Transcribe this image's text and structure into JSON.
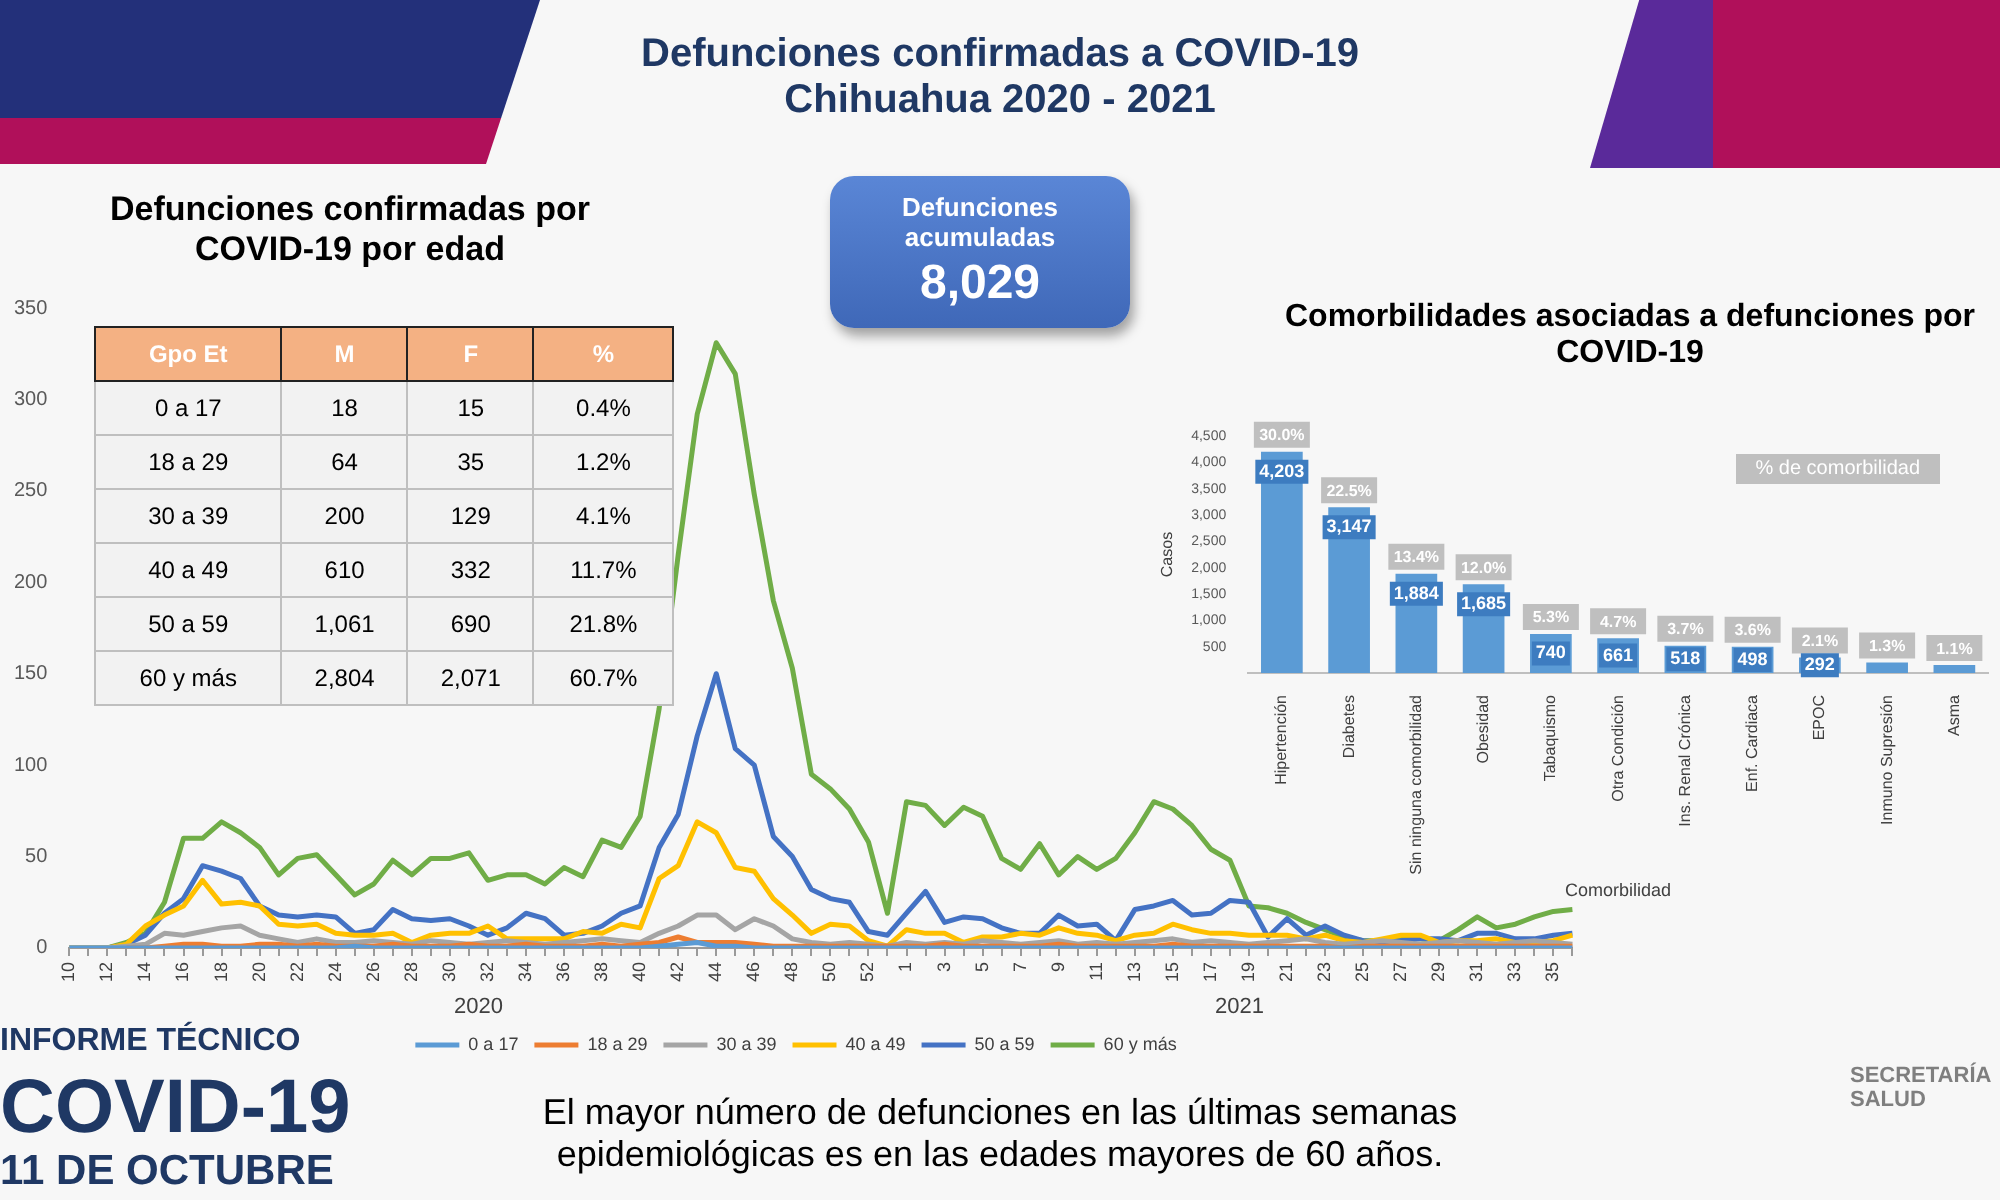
{
  "chart_data": [
    {
      "type": "other",
      "title": "Defunciones confirmadas a COVID-19",
      "subtitle": "Chihuahua 2020 - 2021",
      "annotations": [
        "INFORME TÉCNICO",
        "COVID-19",
        "11 DE OCTUBRE",
        "El mayor número de defunciones en las últimas semanas epidemiológicas es en las edades mayores de 60 años.",
        "SECRETARÍA SALUD"
      ]
    },
    {
      "type": "line",
      "title": "Defunciones confirmadas por COVID-19 por edad",
      "categories": [
        "10",
        null,
        "12",
        null,
        "14",
        null,
        "16",
        null,
        "18",
        null,
        "20",
        null,
        "22",
        null,
        "24",
        null,
        "26",
        null,
        "28",
        null,
        "30",
        null,
        "32",
        null,
        "34",
        null,
        "36",
        null,
        "38",
        null,
        "40",
        null,
        "42",
        null,
        "44",
        null,
        "46",
        null,
        "48",
        null,
        "50",
        null,
        "52",
        null,
        "1",
        null,
        "3",
        null,
        "5",
        null,
        "7",
        null,
        "9",
        null,
        "11",
        null,
        "13",
        null,
        "15",
        null,
        "17",
        null,
        "19",
        null,
        "21",
        null,
        "23",
        null,
        "25",
        null,
        "27",
        null,
        "29",
        null,
        "31",
        null,
        "33",
        null,
        "35",
        null
      ],
      "series": [
        {
          "name": "0 a 17",
          "color": "#5b9bd5",
          "values": [
            0,
            0,
            0,
            0,
            0,
            0,
            0,
            0,
            0,
            0,
            0,
            0,
            0,
            0,
            0,
            1,
            0,
            0,
            0,
            0,
            0,
            0,
            0,
            0,
            0,
            0,
            0,
            0,
            0,
            0,
            0,
            1,
            2,
            3,
            1,
            1,
            0,
            0,
            0,
            0,
            0,
            0,
            0,
            0,
            0,
            0,
            0,
            0,
            0,
            0,
            0,
            0,
            0,
            0,
            0,
            0,
            0,
            0,
            0,
            0,
            0,
            0,
            0,
            0,
            0,
            0,
            0,
            0,
            0,
            0,
            0,
            0,
            0,
            0,
            0,
            0,
            0,
            0,
            0,
            0
          ]
        },
        {
          "name": "18 a 29",
          "color": "#ed7d31",
          "values": [
            null,
            null,
            null,
            0,
            0,
            1,
            2,
            2,
            1,
            1,
            2,
            2,
            1,
            2,
            1,
            1,
            1,
            2,
            1,
            1,
            1,
            2,
            1,
            1,
            2,
            1,
            1,
            1,
            2,
            1,
            2,
            3,
            6,
            3,
            3,
            3,
            2,
            1,
            1,
            1,
            1,
            1,
            1,
            1,
            1,
            1,
            2,
            1,
            1,
            1,
            1,
            1,
            2,
            1,
            1,
            1,
            1,
            1,
            2,
            1,
            1,
            1,
            1,
            1,
            1,
            1,
            1,
            0,
            1,
            1,
            1,
            1,
            1,
            1,
            1,
            1,
            1,
            1,
            1,
            1
          ]
        },
        {
          "name": "30 a 39",
          "color": "#a5a5a5",
          "values": [
            0,
            0,
            0,
            1,
            2,
            8,
            7,
            9,
            11,
            12,
            7,
            5,
            3,
            5,
            3,
            3,
            4,
            3,
            2,
            4,
            3,
            2,
            3,
            4,
            3,
            2,
            3,
            4,
            5,
            4,
            3,
            8,
            12,
            18,
            18,
            10,
            16,
            12,
            5,
            3,
            2,
            3,
            2,
            1,
            3,
            2,
            3,
            2,
            4,
            3,
            2,
            3,
            4,
            2,
            3,
            2,
            3,
            4,
            5,
            3,
            4,
            3,
            2,
            3,
            4,
            5,
            3,
            2,
            3,
            4,
            3,
            2,
            3,
            4,
            3,
            2,
            3,
            4,
            3,
            2
          ]
        },
        {
          "name": "40 a 49",
          "color": "#ffc000",
          "values": [
            0,
            0,
            0,
            2,
            12,
            18,
            23,
            37,
            24,
            25,
            23,
            13,
            12,
            13,
            8,
            7,
            7,
            8,
            3,
            7,
            8,
            8,
            12,
            5,
            5,
            5,
            5,
            9,
            8,
            13,
            11,
            38,
            45,
            69,
            63,
            44,
            42,
            27,
            18,
            8,
            13,
            12,
            4,
            1,
            10,
            8,
            8,
            3,
            6,
            6,
            8,
            7,
            11,
            8,
            7,
            4,
            7,
            8,
            13,
            10,
            8,
            8,
            7,
            7,
            7,
            5,
            7,
            4,
            3,
            5,
            7,
            7,
            3,
            4,
            4,
            5,
            3,
            3,
            4,
            7
          ]
        },
        {
          "name": "50 a 59",
          "color": "#4472c4",
          "values": [
            0,
            0,
            0,
            2,
            7,
            19,
            27,
            45,
            42,
            38,
            23,
            18,
            17,
            18,
            17,
            8,
            10,
            21,
            16,
            15,
            16,
            12,
            7,
            11,
            19,
            16,
            7,
            8,
            12,
            19,
            23,
            55,
            73,
            116,
            150,
            109,
            100,
            61,
            50,
            32,
            27,
            25,
            9,
            7,
            19,
            31,
            14,
            17,
            16,
            11,
            8,
            8,
            18,
            12,
            13,
            4,
            21,
            23,
            26,
            18,
            19,
            26,
            25,
            6,
            16,
            7,
            12,
            7,
            4,
            3,
            4,
            5,
            5,
            4,
            8,
            8,
            5,
            5,
            7,
            8
          ]
        },
        {
          "name": "60 y más",
          "color": "#70ad47",
          "values": [
            0,
            0,
            0,
            3,
            8,
            25,
            60,
            60,
            69,
            63,
            55,
            40,
            49,
            51,
            40,
            29,
            35,
            48,
            40,
            49,
            49,
            52,
            37,
            40,
            40,
            35,
            44,
            39,
            59,
            55,
            72,
            131,
            215,
            292,
            331,
            314,
            248,
            190,
            153,
            95,
            87,
            76,
            58,
            19,
            80,
            78,
            67,
            77,
            72,
            49,
            43,
            57,
            40,
            50,
            43,
            49,
            63,
            80,
            76,
            67,
            54,
            48,
            23,
            22,
            19,
            14,
            10,
            6,
            4,
            4,
            6,
            5,
            4,
            10,
            17,
            11,
            13,
            17,
            20,
            21
          ]
        }
      ],
      "ylim": [
        0,
        350
      ],
      "yticks": [
        0,
        50,
        100,
        150,
        200,
        250,
        300,
        350
      ],
      "grid": false,
      "legend": "bottom",
      "annotations": [
        "2020",
        "2021"
      ]
    },
    {
      "type": "other",
      "ylabel": "Gpo Et",
      "categories": [
        "M",
        "F",
        "%"
      ],
      "y_categories": [
        "0 a 17",
        "18 a 29",
        "30 a 39",
        "40 a 49",
        "50 a 59",
        "60 y más"
      ],
      "cell_labels": [
        [
          "18",
          "15",
          "0.4%"
        ],
        [
          "64",
          "35",
          "1.2%"
        ],
        [
          "200",
          "129",
          "4.1%"
        ],
        [
          "610",
          "332",
          "11.7%"
        ],
        [
          "1,061",
          "690",
          "21.8%"
        ],
        [
          "2,804",
          "2,071",
          "60.7%"
        ]
      ]
    },
    {
      "type": "other",
      "title": "Defunciones acumuladas",
      "annotations": [
        "8,029"
      ]
    },
    {
      "type": "bar",
      "title": "Comorbilidades asociadas a defunciones por COVID-19",
      "xlabel": "Comorbilidad",
      "ylabel": "Casos",
      "categories": [
        "Hipertención",
        "Diabetes",
        "Sin ninguna comorbilidad",
        "Obesidad",
        "Tabaquismo",
        "Otra Condición",
        "Ins. Renal Crónica",
        "Enf. Cardiaca",
        "EPOC",
        "Inmuno Supresión",
        "Asma"
      ],
      "values": [
        4203,
        3147,
        1884,
        1685,
        740,
        661,
        518,
        498,
        292,
        200,
        150
      ],
      "color": "#5b9bd5",
      "value_labels": [
        "4,203",
        "3,147",
        "1,884",
        "1,685",
        "740",
        "661",
        "518",
        "498",
        "292",
        null,
        null
      ],
      "ylim": [
        0,
        4500
      ],
      "yticks": [
        {
          "value": 500,
          "label": "500"
        },
        {
          "value": 1000,
          "label": "1,000"
        },
        {
          "value": 1500,
          "label": "1,500"
        },
        {
          "value": 2000,
          "label": "2,000"
        },
        {
          "value": 2500,
          "label": "2,500"
        },
        {
          "value": 3000,
          "label": "3,000"
        },
        {
          "value": 3500,
          "label": "3,500"
        },
        {
          "value": 4000,
          "label": "4,000"
        },
        {
          "value": 4500,
          "label": "4,500"
        }
      ],
      "grid": false,
      "annotations": [
        "% de comorbilidad",
        {
          "text": "30.0%",
          "x": "Hipertención",
          "y": 4203
        },
        {
          "text": "22.5%",
          "x": "Diabetes",
          "y": 3147
        },
        {
          "text": "13.4%",
          "x": "Sin ninguna comorbilidad",
          "y": 1884
        },
        {
          "text": "12.0%",
          "x": "Obesidad",
          "y": 1685
        },
        {
          "text": "5.3%",
          "x": "Tabaquismo",
          "y": 740
        },
        {
          "text": "4.7%",
          "x": "Otra Condición",
          "y": 661
        },
        {
          "text": "3.7%",
          "x": "Ins. Renal Crónica",
          "y": 518
        },
        {
          "text": "3.6%",
          "x": "Enf. Cardiaca",
          "y": 498
        },
        {
          "text": "2.1%",
          "x": "EPOC",
          "y": 292
        },
        {
          "text": "1.3%",
          "x": "Inmuno Supresión",
          "y": 200
        },
        {
          "text": "1.1%",
          "x": "Asma",
          "y": 150
        }
      ]
    }
  ]
}
